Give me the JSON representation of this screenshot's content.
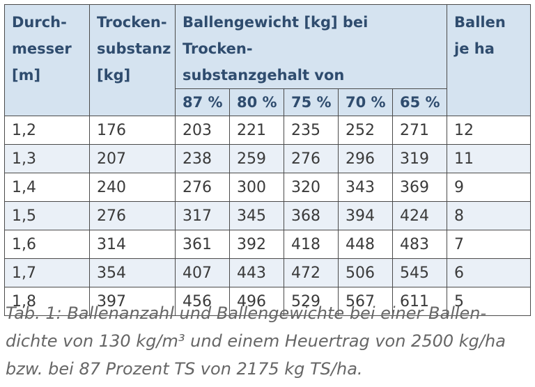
{
  "table": {
    "header": {
      "col1": [
        "Durch-",
        "messer",
        "[m]"
      ],
      "col2": [
        "Trocken-",
        "substanz",
        "[kg]"
      ],
      "group": [
        "Ballengewicht [kg] bei Trocken-",
        "substanzgehalt von"
      ],
      "col_last": [
        "Ballen",
        "je ha"
      ],
      "ts_levels": [
        "87 %",
        "80 %",
        "75 %",
        "70 %",
        "65 %"
      ]
    },
    "rows": [
      [
        "1,2",
        "176",
        "203",
        "221",
        "235",
        "252",
        "271",
        "12"
      ],
      [
        "1,3",
        "207",
        "238",
        "259",
        "276",
        "296",
        "319",
        "11"
      ],
      [
        "1,4",
        "240",
        "276",
        "300",
        "320",
        "343",
        "369",
        "9"
      ],
      [
        "1,5",
        "276",
        "317",
        "345",
        "368",
        "394",
        "424",
        "8"
      ],
      [
        "1,6",
        "314",
        "361",
        "392",
        "418",
        "448",
        "483",
        "7"
      ],
      [
        "1,7",
        "354",
        "407",
        "443",
        "472",
        "506",
        "545",
        "6"
      ],
      [
        "1,8",
        "397",
        "456",
        "496",
        "529",
        "567",
        "611",
        "5"
      ]
    ],
    "colors": {
      "header_bg": "#d5e3f0",
      "header_text": "#2f4c6e",
      "alt_row_bg": "#eaf0f7",
      "border": "#4a4a4a"
    }
  },
  "caption": {
    "line1": "Tab. 1: Ballenanzahl und Ballengewichte bei einer Ballen-",
    "line2": "dichte von 130 kg/m³ und einem Heuertrag von 2500 kg/ha",
    "line3": "bzw. bei 87 Prozent TS von 2175 kg TS/ha."
  }
}
